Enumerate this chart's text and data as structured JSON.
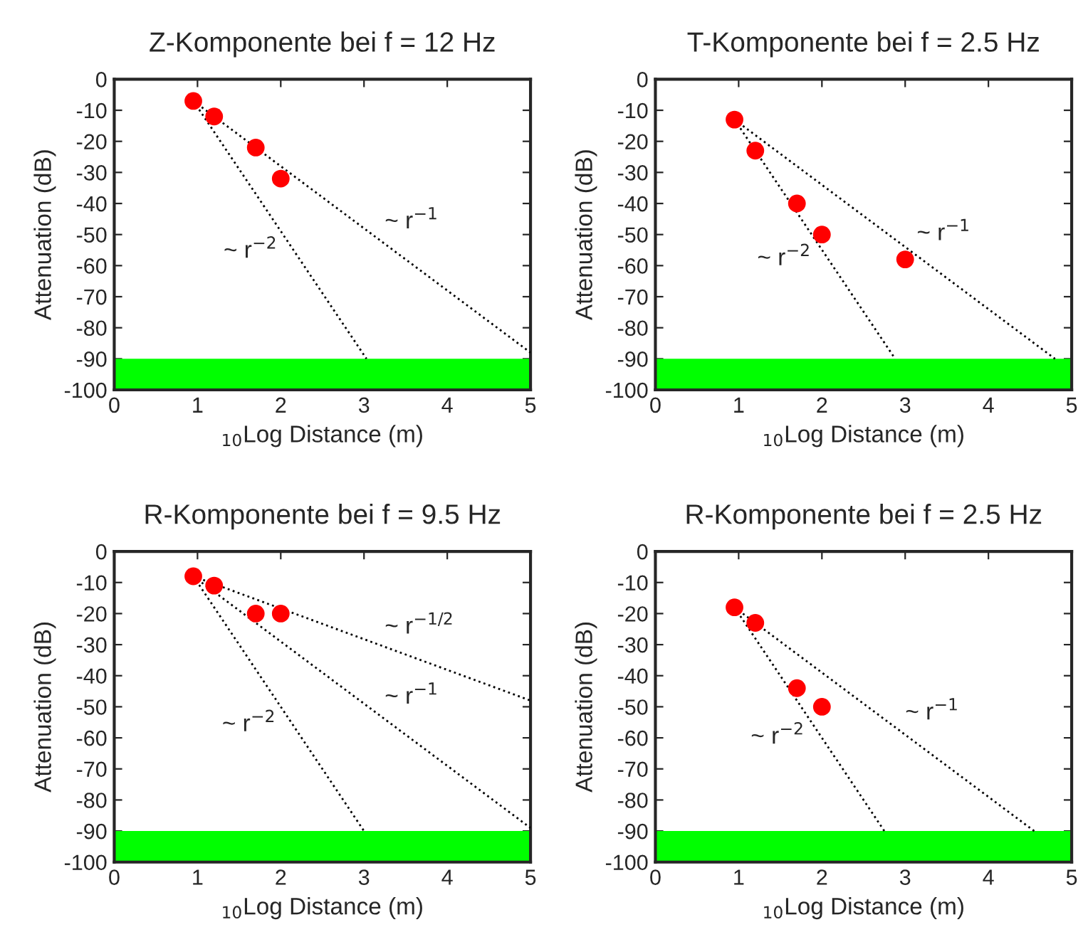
{
  "chart_data": [
    {
      "type": "scatter",
      "title": "Z-Komponente bei f = 12 Hz",
      "xlabel": "$_{10}$Log Distance (m)",
      "ylabel": "Attenuation (dB)",
      "xlim": [
        0,
        5
      ],
      "ylim": [
        -100,
        0
      ],
      "xticks": [
        0,
        1,
        2,
        3,
        4,
        5
      ],
      "yticks": [
        -100,
        -90,
        -80,
        -70,
        -60,
        -50,
        -40,
        -30,
        -20,
        -10,
        0
      ],
      "grid": false,
      "legend": false,
      "series": [
        {
          "color": "#ff0000",
          "marker": "circle",
          "x": [
            0.95,
            1.2,
            1.7,
            2.0
          ],
          "values": [
            -7,
            -12,
            -22,
            -32
          ]
        },
        {
          "type": "line",
          "name": "~ r$^{−1}$",
          "color": "#000000",
          "line_style": "dotted",
          "x": [
            0.95,
            5
          ],
          "values": [
            -7,
            -88
          ]
        },
        {
          "type": "line",
          "name": "~ r$^{−2}$",
          "color": "#000000",
          "line_style": "dotted",
          "x": [
            0.95,
            3.03
          ],
          "values": [
            -7,
            -90
          ]
        }
      ],
      "bands": [
        {
          "axis": "y",
          "from": -100,
          "to": -90,
          "color": "#00ff00"
        }
      ]
    },
    {
      "type": "scatter",
      "title": "T-Komponente bei f = 2.5 Hz",
      "xlabel": "$_{10}$Log Distance (m)",
      "ylabel": "Attenuation (dB)",
      "xlim": [
        0,
        5
      ],
      "ylim": [
        -100,
        0
      ],
      "xticks": [
        0,
        1,
        2,
        3,
        4,
        5
      ],
      "yticks": [
        -100,
        -90,
        -80,
        -70,
        -60,
        -50,
        -40,
        -30,
        -20,
        -10,
        0
      ],
      "grid": false,
      "legend": false,
      "series": [
        {
          "color": "#ff0000",
          "marker": "circle",
          "x": [
            0.95,
            1.2,
            1.7,
            2.0,
            3.0
          ],
          "values": [
            -13,
            -23,
            -40,
            -50,
            -58
          ]
        },
        {
          "type": "line",
          "name": "~ r$^{−1}$",
          "color": "#000000",
          "line_style": "dotted",
          "x": [
            0.95,
            4.8
          ],
          "values": [
            -13,
            -90
          ]
        },
        {
          "type": "line",
          "name": "~ r$^{−2}$",
          "color": "#000000",
          "line_style": "dotted",
          "x": [
            0.95,
            2.88
          ],
          "values": [
            -13,
            -90
          ]
        }
      ],
      "bands": [
        {
          "axis": "y",
          "from": -100,
          "to": -90,
          "color": "#00ff00"
        }
      ]
    },
    {
      "type": "scatter",
      "title": "R-Komponente bei f = 9.5 Hz",
      "xlabel": "$_{10}$Log Distance (m)",
      "ylabel": "Attenuation (dB)",
      "xlim": [
        0,
        5
      ],
      "ylim": [
        -100,
        0
      ],
      "xticks": [
        0,
        1,
        2,
        3,
        4,
        5
      ],
      "yticks": [
        -100,
        -90,
        -80,
        -70,
        -60,
        -50,
        -40,
        -30,
        -20,
        -10,
        0
      ],
      "grid": false,
      "legend": false,
      "series": [
        {
          "color": "#ff0000",
          "marker": "circle",
          "x": [
            0.95,
            1.2,
            1.7,
            2.0
          ],
          "values": [
            -8,
            -11,
            -20,
            -20
          ]
        },
        {
          "type": "line",
          "name": "~ r$^{−1/2}$",
          "color": "#000000",
          "line_style": "dotted",
          "x": [
            0.95,
            5
          ],
          "values": [
            -8,
            -48
          ]
        },
        {
          "type": "line",
          "name": "~ r$^{−1}$",
          "color": "#000000",
          "line_style": "dotted",
          "x": [
            0.95,
            5
          ],
          "values": [
            -8,
            -89
          ]
        },
        {
          "type": "line",
          "name": "~ r$^{−2}$",
          "color": "#000000",
          "line_style": "dotted",
          "x": [
            0.95,
            3.0
          ],
          "values": [
            -8,
            -90
          ]
        }
      ],
      "bands": [
        {
          "axis": "y",
          "from": -100,
          "to": -90,
          "color": "#00ff00"
        }
      ]
    },
    {
      "type": "scatter",
      "title": "R-Komponente bei f = 2.5 Hz",
      "xlabel": "$_{10}$Log Distance (m)",
      "ylabel": "Attenuation (dB)",
      "xlim": [
        0,
        5
      ],
      "ylim": [
        -100,
        0
      ],
      "xticks": [
        0,
        1,
        2,
        3,
        4,
        5
      ],
      "yticks": [
        -100,
        -90,
        -80,
        -70,
        -60,
        -50,
        -40,
        -30,
        -20,
        -10,
        0
      ],
      "grid": false,
      "legend": false,
      "series": [
        {
          "color": "#ff0000",
          "marker": "circle",
          "x": [
            0.95,
            1.2,
            1.7,
            2.0
          ],
          "values": [
            -18,
            -23,
            -44,
            -50
          ]
        },
        {
          "type": "line",
          "name": "~ r$^{−1}$",
          "color": "#000000",
          "line_style": "dotted",
          "x": [
            0.95,
            4.55
          ],
          "values": [
            -18,
            -90
          ]
        },
        {
          "type": "line",
          "name": "~ r$^{−2}$",
          "color": "#000000",
          "line_style": "dotted",
          "x": [
            0.95,
            2.75
          ],
          "values": [
            -18,
            -90
          ]
        }
      ],
      "bands": [
        {
          "axis": "y",
          "from": -100,
          "to": -90,
          "color": "#00ff00"
        }
      ]
    }
  ]
}
